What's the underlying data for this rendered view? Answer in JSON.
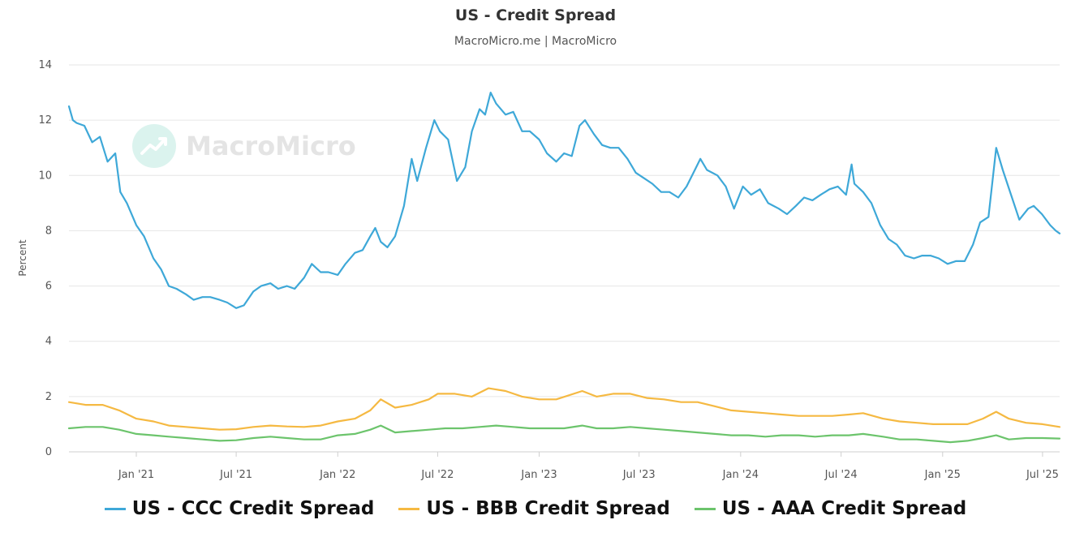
{
  "title": "US - Credit Spread",
  "subtitle": "MacroMicro.me | MacroMicro",
  "watermark": "MacroMicro",
  "chart_data": {
    "type": "line",
    "title": "US - Credit Spread",
    "subtitle": "MacroMicro.me | MacroMicro",
    "ylabel": "Percent",
    "xlabel": "",
    "ylim": [
      0,
      14
    ],
    "yticks": [
      "0",
      "2",
      "4",
      "6",
      "8",
      "10",
      "12",
      "14"
    ],
    "xlim": [
      "2020-09-01",
      "2025-08-01"
    ],
    "xticks": [
      {
        "date": "2021-01-01",
        "label": "Jan '21"
      },
      {
        "date": "2021-07-01",
        "label": "Jul '21"
      },
      {
        "date": "2022-01-01",
        "label": "Jan '22"
      },
      {
        "date": "2022-07-01",
        "label": "Jul '22"
      },
      {
        "date": "2023-01-01",
        "label": "Jan '23"
      },
      {
        "date": "2023-07-01",
        "label": "Jul '23"
      },
      {
        "date": "2024-01-01",
        "label": "Jan '24"
      },
      {
        "date": "2024-07-01",
        "label": "Jul '24"
      },
      {
        "date": "2025-01-01",
        "label": "Jan '25"
      },
      {
        "date": "2025-07-01",
        "label": "Jul '25"
      }
    ],
    "grid": true,
    "legend_position": "bottom",
    "series": [
      {
        "name": "US - CCC Credit Spread",
        "color": "#3ea8d8",
        "points": [
          [
            "2020-09-01",
            12.5
          ],
          [
            "2020-09-08",
            12.0
          ],
          [
            "2020-09-15",
            11.9
          ],
          [
            "2020-09-29",
            11.8
          ],
          [
            "2020-10-13",
            11.2
          ],
          [
            "2020-10-27",
            11.4
          ],
          [
            "2020-11-10",
            10.5
          ],
          [
            "2020-11-24",
            10.8
          ],
          [
            "2020-12-03",
            9.4
          ],
          [
            "2020-12-15",
            9.0
          ],
          [
            "2021-01-01",
            8.2
          ],
          [
            "2021-01-15",
            7.8
          ],
          [
            "2021-02-01",
            7.0
          ],
          [
            "2021-02-15",
            6.6
          ],
          [
            "2021-03-01",
            6.0
          ],
          [
            "2021-03-15",
            5.9
          ],
          [
            "2021-04-01",
            5.7
          ],
          [
            "2021-04-15",
            5.5
          ],
          [
            "2021-05-01",
            5.6
          ],
          [
            "2021-05-15",
            5.6
          ],
          [
            "2021-06-01",
            5.5
          ],
          [
            "2021-06-15",
            5.4
          ],
          [
            "2021-07-01",
            5.2
          ],
          [
            "2021-07-15",
            5.3
          ],
          [
            "2021-08-01",
            5.8
          ],
          [
            "2021-08-15",
            6.0
          ],
          [
            "2021-09-01",
            6.1
          ],
          [
            "2021-09-15",
            5.9
          ],
          [
            "2021-10-01",
            6.0
          ],
          [
            "2021-10-15",
            5.9
          ],
          [
            "2021-11-01",
            6.3
          ],
          [
            "2021-11-15",
            6.8
          ],
          [
            "2021-12-01",
            6.5
          ],
          [
            "2021-12-15",
            6.5
          ],
          [
            "2022-01-01",
            6.4
          ],
          [
            "2022-01-15",
            6.8
          ],
          [
            "2022-02-01",
            7.2
          ],
          [
            "2022-02-15",
            7.3
          ],
          [
            "2022-03-01",
            7.8
          ],
          [
            "2022-03-10",
            8.1
          ],
          [
            "2022-03-20",
            7.6
          ],
          [
            "2022-04-01",
            7.4
          ],
          [
            "2022-04-15",
            7.8
          ],
          [
            "2022-05-01",
            8.9
          ],
          [
            "2022-05-15",
            10.6
          ],
          [
            "2022-05-25",
            9.8
          ],
          [
            "2022-06-10",
            11.0
          ],
          [
            "2022-06-25",
            12.0
          ],
          [
            "2022-07-05",
            11.6
          ],
          [
            "2022-07-20",
            11.3
          ],
          [
            "2022-08-05",
            9.8
          ],
          [
            "2022-08-20",
            10.3
          ],
          [
            "2022-09-01",
            11.6
          ],
          [
            "2022-09-15",
            12.4
          ],
          [
            "2022-09-25",
            12.2
          ],
          [
            "2022-10-05",
            13.0
          ],
          [
            "2022-10-15",
            12.6
          ],
          [
            "2022-11-01",
            12.2
          ],
          [
            "2022-11-15",
            12.3
          ],
          [
            "2022-12-01",
            11.6
          ],
          [
            "2022-12-15",
            11.6
          ],
          [
            "2023-01-01",
            11.3
          ],
          [
            "2023-01-15",
            10.8
          ],
          [
            "2023-02-01",
            10.5
          ],
          [
            "2023-02-15",
            10.8
          ],
          [
            "2023-03-01",
            10.7
          ],
          [
            "2023-03-15",
            11.8
          ],
          [
            "2023-03-25",
            12.0
          ],
          [
            "2023-04-10",
            11.5
          ],
          [
            "2023-04-25",
            11.1
          ],
          [
            "2023-05-10",
            11.0
          ],
          [
            "2023-05-25",
            11.0
          ],
          [
            "2023-06-10",
            10.6
          ],
          [
            "2023-06-25",
            10.1
          ],
          [
            "2023-07-10",
            9.9
          ],
          [
            "2023-07-25",
            9.7
          ],
          [
            "2023-08-10",
            9.4
          ],
          [
            "2023-08-25",
            9.4
          ],
          [
            "2023-09-10",
            9.2
          ],
          [
            "2023-09-25",
            9.6
          ],
          [
            "2023-10-10",
            10.2
          ],
          [
            "2023-10-20",
            10.6
          ],
          [
            "2023-11-01",
            10.2
          ],
          [
            "2023-11-20",
            10.0
          ],
          [
            "2023-12-05",
            9.6
          ],
          [
            "2023-12-20",
            8.8
          ],
          [
            "2024-01-05",
            9.6
          ],
          [
            "2024-01-20",
            9.3
          ],
          [
            "2024-02-05",
            9.5
          ],
          [
            "2024-02-20",
            9.0
          ],
          [
            "2024-03-10",
            8.8
          ],
          [
            "2024-03-25",
            8.6
          ],
          [
            "2024-04-10",
            8.9
          ],
          [
            "2024-04-25",
            9.2
          ],
          [
            "2024-05-10",
            9.1
          ],
          [
            "2024-05-25",
            9.3
          ],
          [
            "2024-06-10",
            9.5
          ],
          [
            "2024-06-25",
            9.6
          ],
          [
            "2024-07-10",
            9.3
          ],
          [
            "2024-07-20",
            10.4
          ],
          [
            "2024-07-25",
            9.7
          ],
          [
            "2024-08-10",
            9.4
          ],
          [
            "2024-08-25",
            9.0
          ],
          [
            "2024-09-10",
            8.2
          ],
          [
            "2024-09-25",
            7.7
          ],
          [
            "2024-10-10",
            7.5
          ],
          [
            "2024-10-25",
            7.1
          ],
          [
            "2024-11-10",
            7.0
          ],
          [
            "2024-11-25",
            7.1
          ],
          [
            "2024-12-10",
            7.1
          ],
          [
            "2024-12-25",
            7.0
          ],
          [
            "2025-01-10",
            6.8
          ],
          [
            "2025-01-25",
            6.9
          ],
          [
            "2025-02-10",
            6.9
          ],
          [
            "2025-02-25",
            7.5
          ],
          [
            "2025-03-10",
            8.3
          ],
          [
            "2025-03-25",
            8.5
          ],
          [
            "2025-04-08",
            11.0
          ],
          [
            "2025-04-20",
            10.2
          ],
          [
            "2025-05-05",
            9.3
          ],
          [
            "2025-05-20",
            8.4
          ],
          [
            "2025-06-05",
            8.8
          ],
          [
            "2025-06-15",
            8.9
          ],
          [
            "2025-06-30",
            8.6
          ],
          [
            "2025-07-15",
            8.2
          ],
          [
            "2025-07-25",
            8.0
          ],
          [
            "2025-08-01",
            7.9
          ]
        ]
      },
      {
        "name": "US - BBB Credit Spread",
        "color": "#f5b942",
        "points": [
          [
            "2020-09-01",
            1.8
          ],
          [
            "2020-10-01",
            1.7
          ],
          [
            "2020-11-01",
            1.7
          ],
          [
            "2020-12-01",
            1.5
          ],
          [
            "2021-01-01",
            1.2
          ],
          [
            "2021-02-01",
            1.1
          ],
          [
            "2021-03-01",
            0.95
          ],
          [
            "2021-04-01",
            0.9
          ],
          [
            "2021-05-01",
            0.85
          ],
          [
            "2021-06-01",
            0.8
          ],
          [
            "2021-07-01",
            0.82
          ],
          [
            "2021-08-01",
            0.9
          ],
          [
            "2021-09-01",
            0.95
          ],
          [
            "2021-10-01",
            0.92
          ],
          [
            "2021-11-01",
            0.9
          ],
          [
            "2021-12-01",
            0.95
          ],
          [
            "2022-01-01",
            1.1
          ],
          [
            "2022-02-01",
            1.2
          ],
          [
            "2022-03-01",
            1.5
          ],
          [
            "2022-03-20",
            1.9
          ],
          [
            "2022-04-15",
            1.6
          ],
          [
            "2022-05-15",
            1.7
          ],
          [
            "2022-06-15",
            1.9
          ],
          [
            "2022-07-01",
            2.1
          ],
          [
            "2022-08-01",
            2.1
          ],
          [
            "2022-09-01",
            2.0
          ],
          [
            "2022-10-01",
            2.3
          ],
          [
            "2022-11-01",
            2.2
          ],
          [
            "2022-12-01",
            2.0
          ],
          [
            "2023-01-01",
            1.9
          ],
          [
            "2023-02-01",
            1.9
          ],
          [
            "2023-03-20",
            2.2
          ],
          [
            "2023-04-15",
            2.0
          ],
          [
            "2023-05-15",
            2.1
          ],
          [
            "2023-06-15",
            2.1
          ],
          [
            "2023-07-15",
            1.95
          ],
          [
            "2023-08-15",
            1.9
          ],
          [
            "2023-09-15",
            1.8
          ],
          [
            "2023-10-15",
            1.8
          ],
          [
            "2023-11-15",
            1.65
          ],
          [
            "2023-12-15",
            1.5
          ],
          [
            "2024-01-15",
            1.45
          ],
          [
            "2024-02-15",
            1.4
          ],
          [
            "2024-03-15",
            1.35
          ],
          [
            "2024-04-15",
            1.3
          ],
          [
            "2024-05-15",
            1.3
          ],
          [
            "2024-06-15",
            1.3
          ],
          [
            "2024-07-15",
            1.35
          ],
          [
            "2024-08-10",
            1.4
          ],
          [
            "2024-09-15",
            1.2
          ],
          [
            "2024-10-15",
            1.1
          ],
          [
            "2024-11-15",
            1.05
          ],
          [
            "2024-12-15",
            1.0
          ],
          [
            "2025-01-15",
            1.0
          ],
          [
            "2025-02-15",
            1.0
          ],
          [
            "2025-03-15",
            1.2
          ],
          [
            "2025-04-08",
            1.45
          ],
          [
            "2025-05-01",
            1.2
          ],
          [
            "2025-06-01",
            1.05
          ],
          [
            "2025-07-01",
            1.0
          ],
          [
            "2025-08-01",
            0.9
          ]
        ]
      },
      {
        "name": "US - AAA Credit Spread",
        "color": "#6cc46c",
        "points": [
          [
            "2020-09-01",
            0.85
          ],
          [
            "2020-10-01",
            0.9
          ],
          [
            "2020-11-01",
            0.9
          ],
          [
            "2020-12-01",
            0.8
          ],
          [
            "2021-01-01",
            0.65
          ],
          [
            "2021-02-01",
            0.6
          ],
          [
            "2021-03-01",
            0.55
          ],
          [
            "2021-04-01",
            0.5
          ],
          [
            "2021-05-01",
            0.45
          ],
          [
            "2021-06-01",
            0.4
          ],
          [
            "2021-07-01",
            0.42
          ],
          [
            "2021-08-01",
            0.5
          ],
          [
            "2021-09-01",
            0.55
          ],
          [
            "2021-10-01",
            0.5
          ],
          [
            "2021-11-01",
            0.45
          ],
          [
            "2021-12-01",
            0.45
          ],
          [
            "2022-01-01",
            0.6
          ],
          [
            "2022-02-01",
            0.65
          ],
          [
            "2022-03-01",
            0.8
          ],
          [
            "2022-03-20",
            0.95
          ],
          [
            "2022-04-15",
            0.7
          ],
          [
            "2022-05-15",
            0.75
          ],
          [
            "2022-06-15",
            0.8
          ],
          [
            "2022-07-15",
            0.85
          ],
          [
            "2022-08-15",
            0.85
          ],
          [
            "2022-09-15",
            0.9
          ],
          [
            "2022-10-15",
            0.95
          ],
          [
            "2022-11-15",
            0.9
          ],
          [
            "2022-12-15",
            0.85
          ],
          [
            "2023-01-15",
            0.85
          ],
          [
            "2023-02-15",
            0.85
          ],
          [
            "2023-03-20",
            0.95
          ],
          [
            "2023-04-15",
            0.85
          ],
          [
            "2023-05-15",
            0.85
          ],
          [
            "2023-06-15",
            0.9
          ],
          [
            "2023-07-15",
            0.85
          ],
          [
            "2023-08-15",
            0.8
          ],
          [
            "2023-09-15",
            0.75
          ],
          [
            "2023-10-15",
            0.7
          ],
          [
            "2023-11-15",
            0.65
          ],
          [
            "2023-12-15",
            0.6
          ],
          [
            "2024-01-15",
            0.6
          ],
          [
            "2024-02-15",
            0.55
          ],
          [
            "2024-03-15",
            0.6
          ],
          [
            "2024-04-15",
            0.6
          ],
          [
            "2024-05-15",
            0.55
          ],
          [
            "2024-06-15",
            0.6
          ],
          [
            "2024-07-15",
            0.6
          ],
          [
            "2024-08-10",
            0.65
          ],
          [
            "2024-09-15",
            0.55
          ],
          [
            "2024-10-15",
            0.45
          ],
          [
            "2024-11-15",
            0.45
          ],
          [
            "2024-12-15",
            0.4
          ],
          [
            "2025-01-15",
            0.35
          ],
          [
            "2025-02-15",
            0.4
          ],
          [
            "2025-03-15",
            0.5
          ],
          [
            "2025-04-08",
            0.6
          ],
          [
            "2025-05-01",
            0.45
          ],
          [
            "2025-06-01",
            0.5
          ],
          [
            "2025-07-01",
            0.5
          ],
          [
            "2025-08-01",
            0.48
          ]
        ]
      }
    ]
  }
}
